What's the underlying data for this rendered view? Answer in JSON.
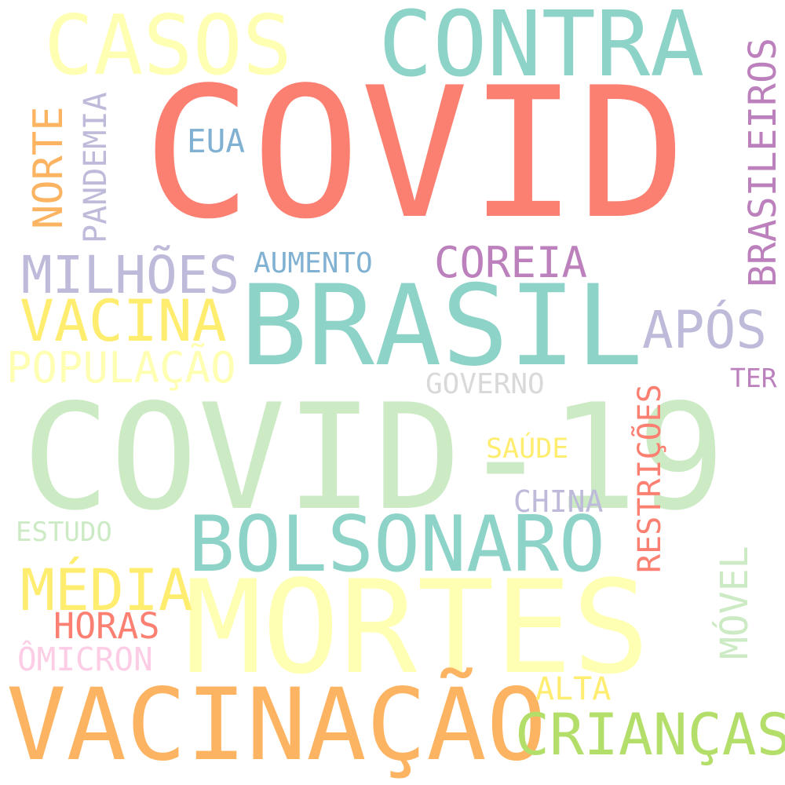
{
  "words": [
    {
      "text": "COVID",
      "color": "#fb8072"
    },
    {
      "text": "COVID-19",
      "color": "#ccebc5"
    },
    {
      "text": "BRASIL",
      "color": "#8dd3c7"
    },
    {
      "text": "MORTES",
      "color": "#ffffb3"
    },
    {
      "text": "VACINAÇÃO",
      "color": "#fdb462"
    },
    {
      "text": "CONTRA",
      "color": "#8dd3c7"
    },
    {
      "text": "CASOS",
      "color": "#ffffb3"
    },
    {
      "text": "BOLSONARO",
      "color": "#8dd3c7"
    },
    {
      "text": "CRIANÇAS",
      "color": "#b3de69"
    },
    {
      "text": "MILHÕES",
      "color": "#bebada"
    },
    {
      "text": "VACINA",
      "color": "#ffed6f"
    },
    {
      "text": "MÉDIA",
      "color": "#ffed6f"
    },
    {
      "text": "APÓS",
      "color": "#bebada"
    },
    {
      "text": "POPULAÇÃO",
      "color": "#ffffb3"
    },
    {
      "text": "COREIA",
      "color": "#bc80bd"
    },
    {
      "text": "BRASILEIROS",
      "color": "#bc80bd"
    },
    {
      "text": "NORTE",
      "color": "#fdb462"
    },
    {
      "text": "PANDEMIA",
      "color": "#bebada"
    },
    {
      "text": "RESTRIÇÕES",
      "color": "#fb8072"
    },
    {
      "text": "MÓVEL",
      "color": "#ccebc5"
    },
    {
      "text": "AUMENTO",
      "color": "#80b1d3"
    },
    {
      "text": "EUA",
      "color": "#80b1d3"
    },
    {
      "text": "GOVERNO",
      "color": "#d9d9d9"
    },
    {
      "text": "HORAS",
      "color": "#fb8072"
    },
    {
      "text": "ÔMICRON",
      "color": "#fccde5"
    },
    {
      "text": "ALTA",
      "color": "#ffed6f"
    },
    {
      "text": "CHINA",
      "color": "#bebada"
    },
    {
      "text": "SAÚDE",
      "color": "#ffed6f"
    },
    {
      "text": "ESTUDO",
      "color": "#ccebc5"
    },
    {
      "text": "TER",
      "color": "#bc80bd"
    }
  ]
}
